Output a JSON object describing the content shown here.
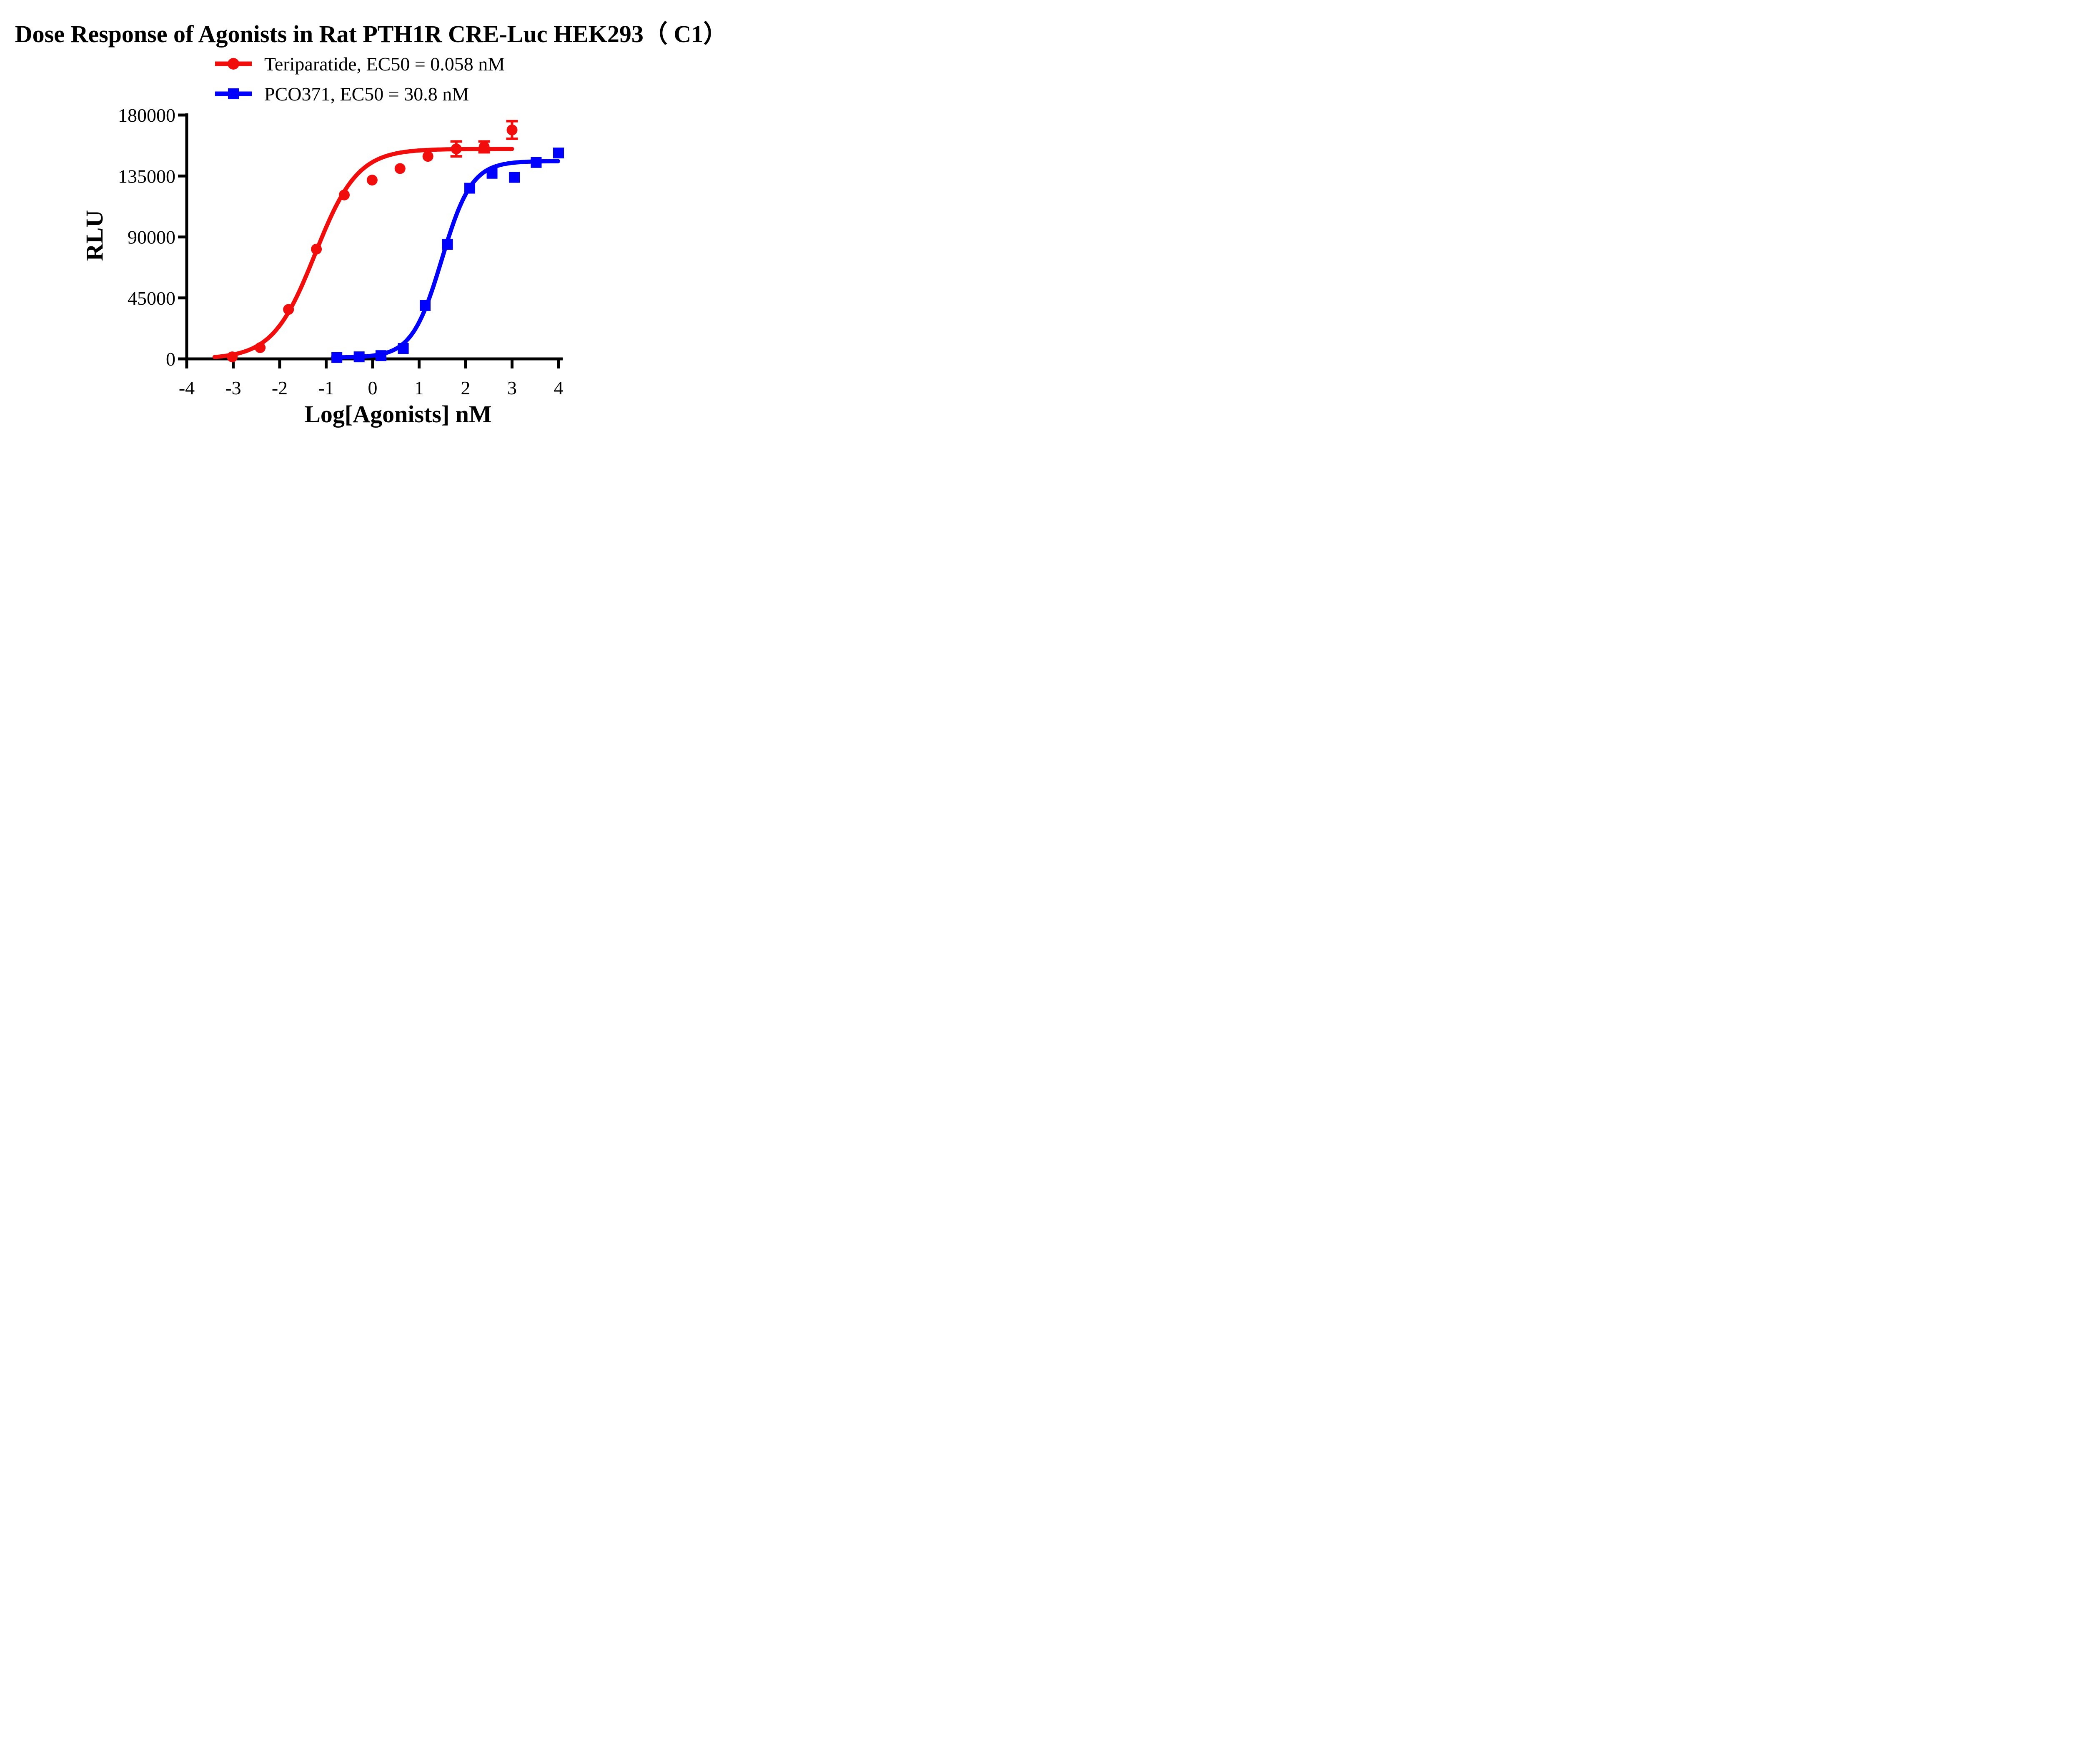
{
  "chart_data": {
    "type": "scatter",
    "title": "Dose Response of Agonists in Rat PTH1R CRE-Luc HEK293（ C1）",
    "xlabel": "Log[Agonists] nM",
    "ylabel": "RLU",
    "xlim": [
      -4,
      4
    ],
    "ylim": [
      0,
      180000
    ],
    "grid": false,
    "legend_position": "top-center",
    "x_ticks": [
      -4,
      -3,
      -2,
      -1,
      0,
      1,
      2,
      3,
      4
    ],
    "x_tick_labels": [
      "-4",
      "-3",
      "-2",
      "-1",
      "0",
      "1",
      "2",
      "3",
      "4"
    ],
    "y_ticks": [
      0,
      45000,
      90000,
      135000,
      180000
    ],
    "y_tick_labels": [
      "0",
      "45000",
      "90000",
      "135000",
      "180000"
    ],
    "axis_color": "#000000",
    "series": [
      {
        "name": "Teriparatide, EC50 = 0.058 nM",
        "color": "#F20D0D",
        "marker": "circle",
        "ec50_nM": 0.058,
        "x": [
          -3.02,
          -2.42,
          -1.81,
          -1.21,
          -0.61,
          -0.01,
          0.59,
          1.19,
          1.8,
          2.4,
          3.0
        ],
        "y": [
          1500,
          8300,
          36500,
          81000,
          121000,
          132000,
          140500,
          149500,
          155000,
          156500,
          169000
        ],
        "yerr": [
          0,
          0,
          0,
          0,
          0,
          0,
          0,
          0,
          5500,
          4000,
          6500
        ],
        "fit": {
          "bottom": 0,
          "top": 155000,
          "logEC50": -1.237,
          "hill": 0.95,
          "range": [
            -3.4,
            3.0
          ]
        }
      },
      {
        "name": "PCO371, EC50 = 30.8 nM",
        "color": "#0000FF",
        "marker": "square",
        "ec50_nM": 30.8,
        "x": [
          -0.77,
          -0.29,
          0.18,
          0.66,
          1.13,
          1.61,
          2.09,
          2.57,
          3.05,
          3.52,
          4.0
        ],
        "y": [
          1000,
          1500,
          2400,
          7700,
          39400,
          84600,
          126000,
          137000,
          134000,
          145000,
          152000
        ],
        "yerr": [
          0,
          0,
          0,
          0,
          0,
          0,
          0,
          0,
          0,
          0,
          0
        ],
        "fit": {
          "bottom": 1000,
          "top": 146000,
          "logEC50": 1.489,
          "hill": 1.35,
          "range": [
            -0.85,
            4.0
          ]
        }
      }
    ]
  }
}
